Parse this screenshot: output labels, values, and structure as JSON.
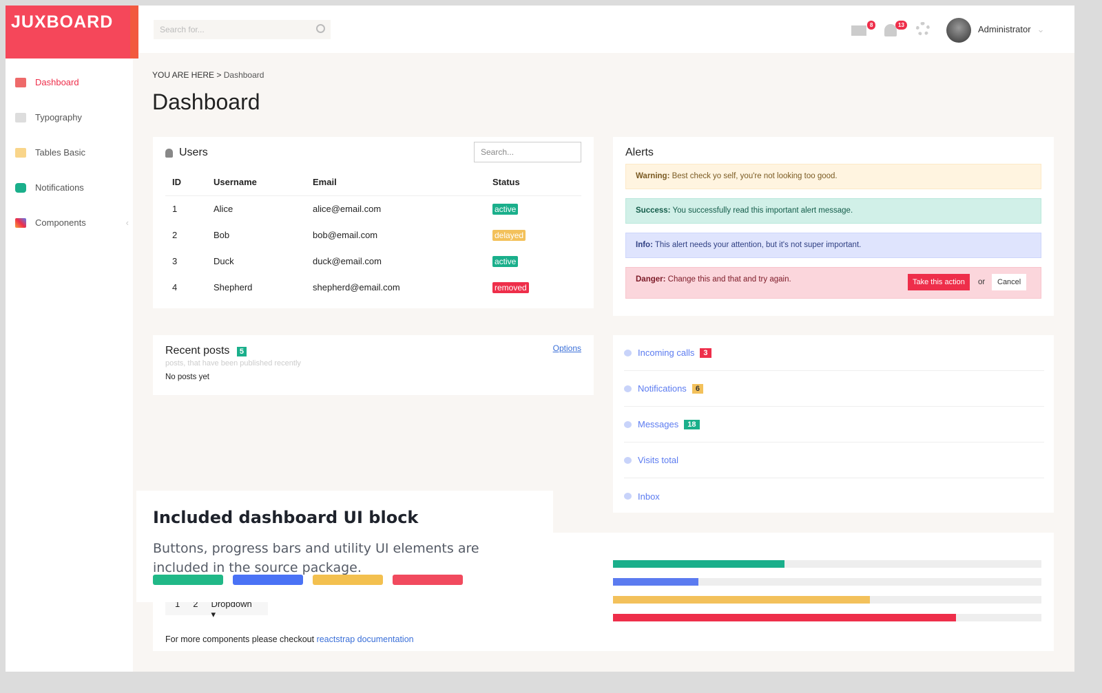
{
  "brand": "JUXBOARD",
  "sidebar": {
    "items": [
      {
        "label": "Dashboard",
        "icon": "home-icon"
      },
      {
        "label": "Typography",
        "icon": "edit-icon"
      },
      {
        "label": "Tables Basic",
        "icon": "table-icon"
      },
      {
        "label": "Notifications",
        "icon": "chat-icon"
      },
      {
        "label": "Components",
        "icon": "share-icon"
      }
    ]
  },
  "header": {
    "search_placeholder": "Search for...",
    "mail_count": "8",
    "bell_count": "13",
    "user": "Administrator"
  },
  "breadcrumb": {
    "prefix": "YOU ARE HERE",
    "sep": ">",
    "current": "Dashboard"
  },
  "page_title": "Dashboard",
  "users": {
    "title": "Users",
    "search_placeholder": "Search...",
    "columns": [
      "ID",
      "Username",
      "Email",
      "Status"
    ],
    "rows": [
      [
        "1",
        "Alice",
        "alice@email.com",
        "active"
      ],
      [
        "2",
        "Bob",
        "bob@email.com",
        "delayed"
      ],
      [
        "3",
        "Duck",
        "duck@email.com",
        "active"
      ],
      [
        "4",
        "Shepherd",
        "shepherd@email.com",
        "removed"
      ]
    ]
  },
  "status_colors": {
    "active": "#1aaf8b",
    "delayed": "#f3c15b",
    "removed": "#ee2e4a"
  },
  "alerts": {
    "title": "Alerts",
    "items": [
      {
        "label": "Warning:",
        "text": " Best check yo self, you're not looking too good.",
        "bg": "#fff4e0",
        "border": "#fde9c6",
        "color": "#7a5a22"
      },
      {
        "label": "Success:",
        "text": " You successfully read this important alert message.",
        "bg": "#d1f0e8",
        "border": "#b9e8db",
        "color": "#145c4a"
      },
      {
        "label": "Info:",
        "text": " This alert needs your attention, but it's not super important.",
        "bg": "#dfe4fd",
        "border": "#cdd5fb",
        "color": "#2f3f82"
      },
      {
        "label": "Danger:",
        "text": " Change this and that and try again.",
        "bg": "#fbd6dc",
        "border": "#f8c4cc",
        "color": "#7c1a27"
      }
    ],
    "action": "Take this action",
    "or": "or",
    "cancel": "Cancel"
  },
  "recent": {
    "title": "Recent posts",
    "count": "5",
    "subtitle": "posts, that have been published recently",
    "empty": "No posts yet",
    "options": "Options"
  },
  "list": [
    {
      "label": "Incoming calls",
      "icon": "phone-icon",
      "count": "3",
      "color": "#ee2e4a"
    },
    {
      "label": "Notifications",
      "icon": "bell-icon",
      "count": "6",
      "color": "#f3c15b"
    },
    {
      "label": "Messages",
      "icon": "speech-bubble-icon",
      "count": "18",
      "color": "#1aaf8b"
    },
    {
      "label": "Visits total",
      "icon": "eye-icon"
    },
    {
      "label": "Inbox",
      "icon": "cloud-icon"
    }
  ],
  "progress": [
    {
      "value": 40,
      "color": "#1aaf8b"
    },
    {
      "value": 20,
      "color": "#5b7bf0"
    },
    {
      "value": 60,
      "color": "#f3c15b"
    },
    {
      "value": 80,
      "color": "#ee2e4a"
    }
  ],
  "overlay": {
    "title": "Included dashboard UI block",
    "text": "Buttons, progress bars and utility UI elements are included in the source package.",
    "buttons": [
      "#20b887",
      "#4a72f5",
      "#f3c04f",
      "#f14a5e"
    ]
  },
  "pagination": {
    "p1": "1",
    "p2": "2",
    "dropdown": "Dropdown ▾"
  },
  "footer": {
    "text": "For more components please checkout ",
    "link": "reactstrap documentation"
  }
}
